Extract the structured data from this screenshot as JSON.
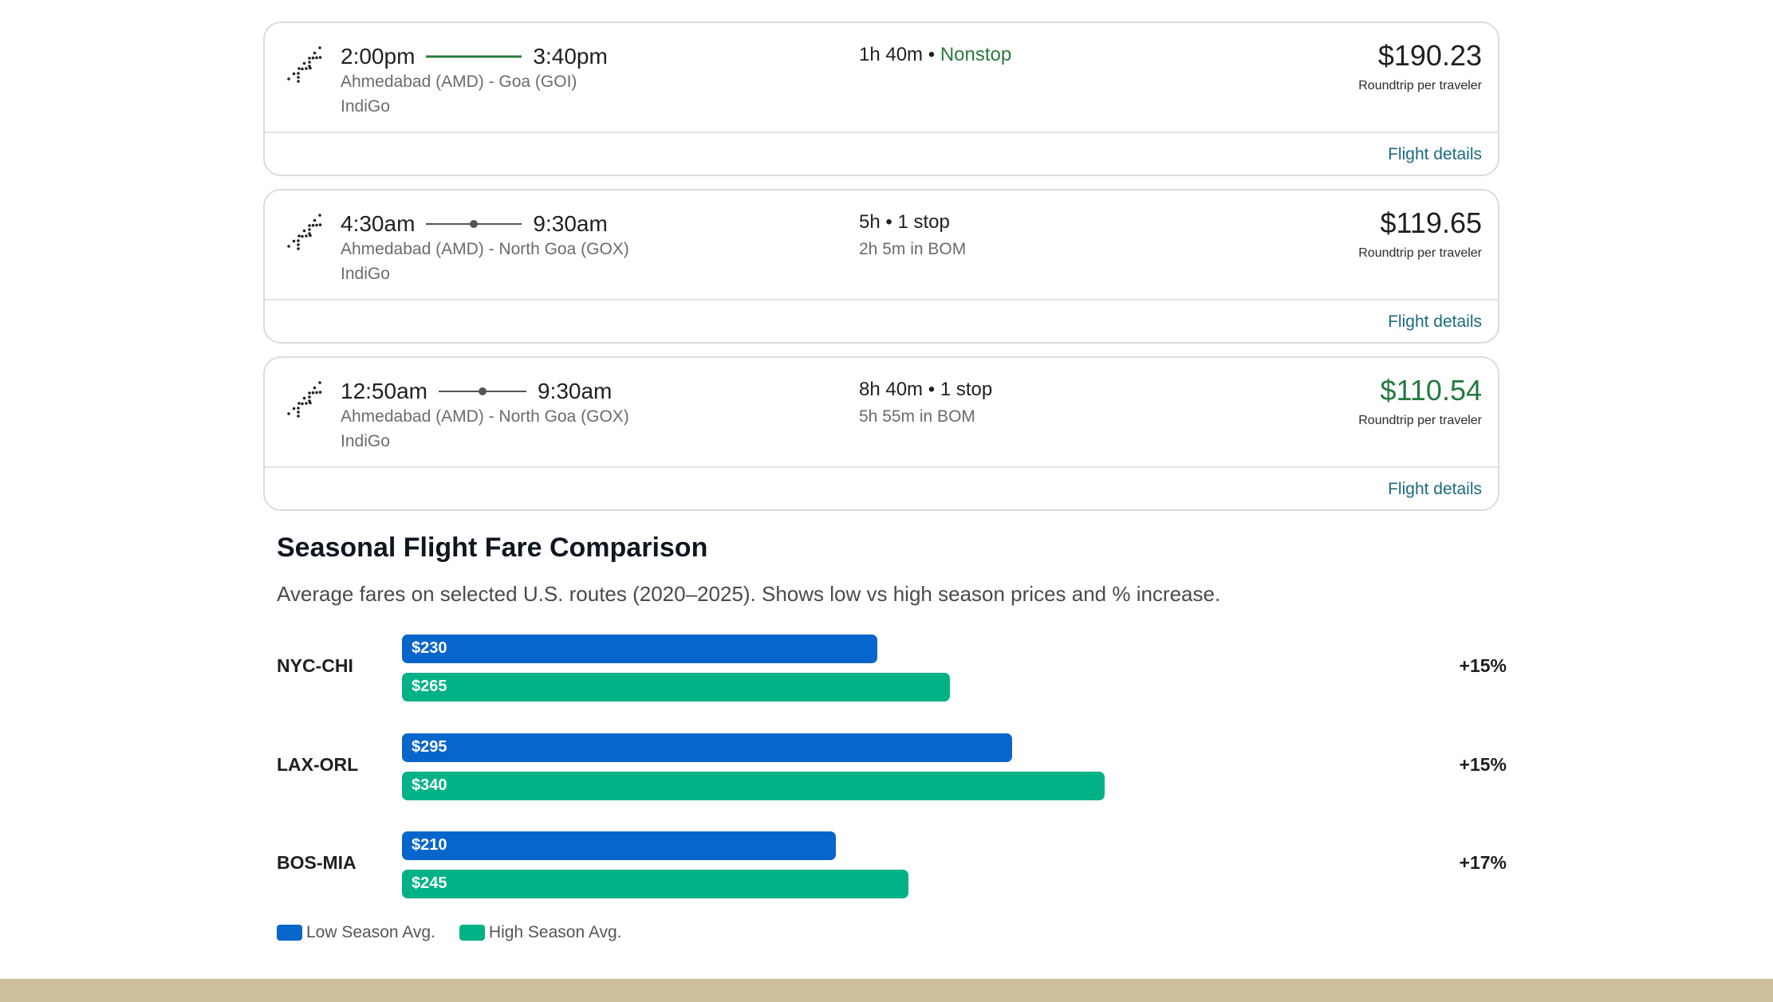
{
  "flights": [
    {
      "depart": "2:00pm",
      "arrive": "3:40pm",
      "stops": 0,
      "route": "Ahmedabad (AMD) - Goa (GOI)",
      "airline": "IndiGo",
      "duration": "1h 40m",
      "stop_text": "Nonstop",
      "layover": "",
      "price": "$190.23",
      "price_sub": "Roundtrip per traveler",
      "details": "Flight details"
    },
    {
      "depart": "4:30am",
      "arrive": "9:30am",
      "stops": 1,
      "route": "Ahmedabad (AMD) - North Goa (GOX)",
      "airline": "IndiGo",
      "duration": "5h",
      "stop_text": "1 stop",
      "layover": "2h 5m in BOM",
      "price": "$119.65",
      "price_sub": "Roundtrip per traveler",
      "details": "Flight details"
    },
    {
      "depart": "12:50am",
      "arrive": "9:30am",
      "stops": 1,
      "route": "Ahmedabad (AMD) - North Goa (GOX)",
      "airline": "IndiGo",
      "duration": "8h 40m",
      "stop_text": "1 stop",
      "layover": "5h 55m in BOM",
      "price": "$110.54",
      "price_sub": "Roundtrip per traveler",
      "details": "Flight details",
      "best": true
    }
  ],
  "fare": {
    "title": "Seasonal Flight Fare Comparison",
    "subtitle": "Average fares on selected U.S. routes (2020–2025). Shows low vs high season prices and % increase."
  },
  "chart_data": {
    "type": "bar",
    "orientation": "horizontal",
    "categories": [
      "NYC-CHI",
      "LAX-ORL",
      "BOS-MIA"
    ],
    "series": [
      {
        "name": "Low Season Avg.",
        "values": [
          230,
          295,
          210
        ],
        "labels": [
          "$230",
          "$295",
          "$210"
        ],
        "color": "#0766cb"
      },
      {
        "name": "High Season Avg.",
        "values": [
          265,
          340,
          245
        ],
        "labels": [
          "$265",
          "$340",
          "$245"
        ],
        "color": "#00b286"
      }
    ],
    "increase": [
      "+15%",
      "+15%",
      "+17%"
    ],
    "xlim": [
      0,
      380
    ],
    "legend": "bottom-left"
  },
  "colors": {
    "accent_green": "#2a7a3b",
    "link": "#1b6a80",
    "footer": "#cdbf9a"
  }
}
